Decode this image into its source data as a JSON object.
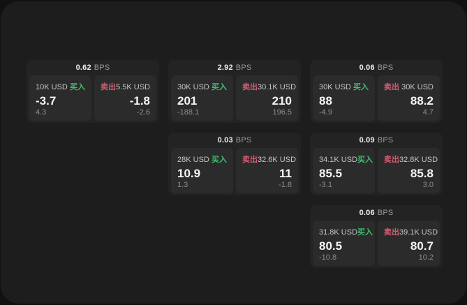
{
  "labels": {
    "bps_unit": "BPS",
    "buy": "买入",
    "sell": "卖出"
  },
  "colors": {
    "background": "#111111",
    "surface": "#1d1d1d",
    "card": "#232323",
    "panel": "#2b2b2b",
    "buy_green": "#42bd6e",
    "sell_rose": "#d05c72",
    "value_white": "#f4f4f4",
    "muted_gray": "#8d8d8d"
  },
  "cards": [
    {
      "bps": "0.62",
      "buy": {
        "amount": "10K USD",
        "value": "-3.7",
        "delta": "4.3"
      },
      "sell": {
        "amount": "5.5K USD",
        "value": "-1.8",
        "delta": "-2.6"
      }
    },
    {
      "bps": "2.92",
      "buy": {
        "amount": "30K USD",
        "value": "201",
        "delta": "-188.1"
      },
      "sell": {
        "amount": "30.1K USD",
        "value": "210",
        "delta": "196.5"
      }
    },
    {
      "bps": "0.06",
      "buy": {
        "amount": "30K USD",
        "value": "88",
        "delta": "-4.9"
      },
      "sell": {
        "amount": "30K USD",
        "value": "88.2",
        "delta": "4.7"
      }
    },
    {
      "bps": "0.03",
      "buy": {
        "amount": "28K USD",
        "value": "10.9",
        "delta": "1.3"
      },
      "sell": {
        "amount": "32.6K USD",
        "value": "11",
        "delta": "-1.8"
      }
    },
    {
      "bps": "0.09",
      "buy": {
        "amount": "34.1K USD",
        "value": "85.5",
        "delta": "-3.1"
      },
      "sell": {
        "amount": "32.8K USD",
        "value": "85.8",
        "delta": "3.0"
      }
    },
    {
      "bps": "0.06",
      "buy": {
        "amount": "31.8K USD",
        "value": "80.5",
        "delta": "-10.8"
      },
      "sell": {
        "amount": "39.1K USD",
        "value": "80.7",
        "delta": "10.2"
      }
    }
  ]
}
